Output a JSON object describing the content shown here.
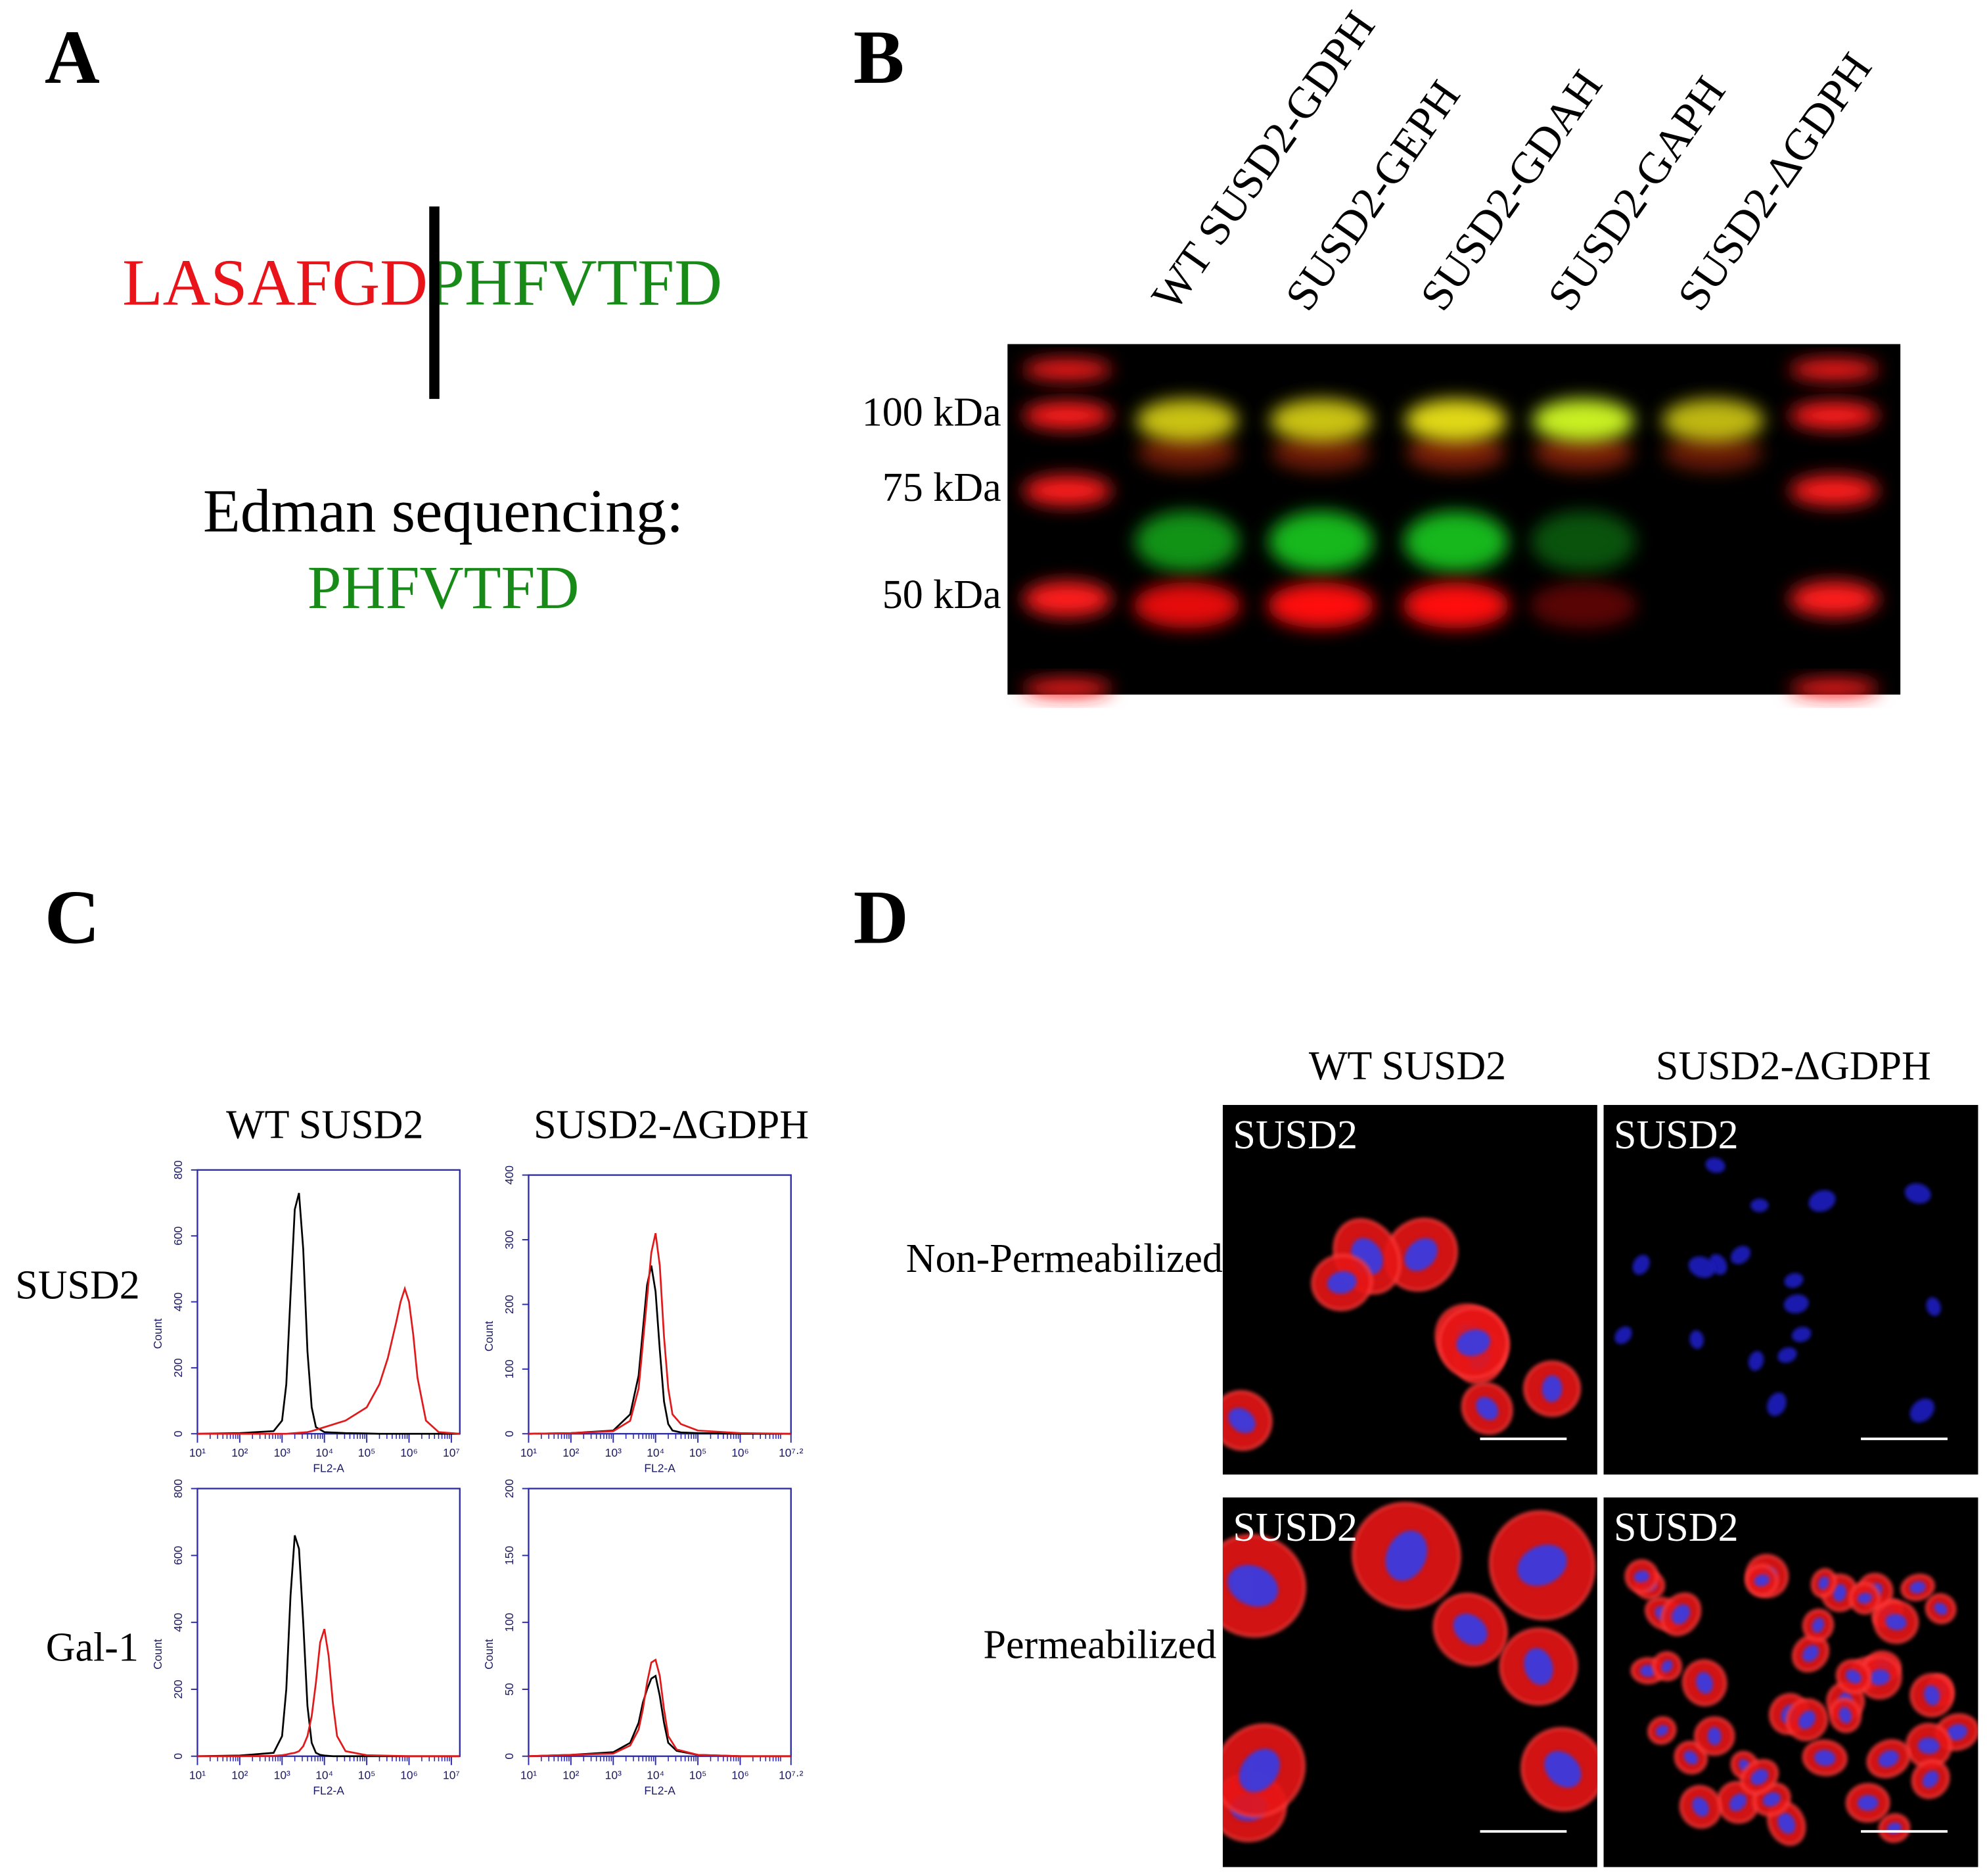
{
  "panel_a": {
    "label": "A",
    "sequence_left": "LASAFGD",
    "sequence_right": "PHFVTFD",
    "caption": "Edman sequencing:",
    "result": "PHFVTFD"
  },
  "panel_b": {
    "label": "B",
    "lanes": [
      "WT SUSD2-GDPH",
      "SUSD2-GEPH",
      "SUSD2-GDAH",
      "SUSD2-GAPH",
      "SUSD2-ΔGDPH"
    ],
    "markers": [
      "100 kDa",
      "75 kDa",
      "50 kDa"
    ]
  },
  "panel_c": {
    "label": "C",
    "columns": [
      "WT SUSD2",
      "SUSD2-ΔGDPH"
    ],
    "rows": [
      "SUSD2",
      "Gal-1"
    ],
    "charts": [
      {
        "type": "line",
        "xlabel": "FL2-A",
        "ylabel": "Count",
        "xlim": [
          1,
          7.2
        ],
        "ylim": [
          0,
          800
        ],
        "yticks": [
          0,
          200,
          400,
          600,
          800
        ],
        "xticks": [
          {
            "value": 1,
            "label": "10¹"
          },
          {
            "value": 2,
            "label": "10²"
          },
          {
            "value": 3,
            "label": "10³"
          },
          {
            "value": 4,
            "label": "10⁴"
          },
          {
            "value": 5,
            "label": "10⁵"
          },
          {
            "value": 6,
            "label": "10⁶"
          },
          {
            "value": 7,
            "label": "10⁷"
          }
        ],
        "x": [
          1,
          2,
          2.8,
          3.0,
          3.1,
          3.2,
          3.3,
          3.4,
          3.5,
          3.6,
          3.7,
          3.8,
          4.0,
          4.5,
          5.0,
          5.3,
          5.5,
          5.7,
          5.8,
          5.9,
          6.0,
          6.1,
          6.2,
          6.4,
          6.7,
          7.2
        ],
        "series": [
          {
            "color": "#000000",
            "values": [
              0,
              2,
              8,
              40,
              150,
              420,
              680,
              730,
              560,
              250,
              80,
              20,
              5,
              2,
              1,
              0,
              0,
              0,
              0,
              0,
              0,
              0,
              0,
              0,
              0,
              0
            ]
          },
          {
            "color": "#e0191b",
            "values": [
              0,
              0,
              0,
              0,
              0,
              1,
              2,
              3,
              4,
              5,
              8,
              12,
              20,
              40,
              80,
              150,
              230,
              340,
              400,
              440,
              400,
              300,
              170,
              40,
              5,
              0
            ]
          }
        ]
      },
      {
        "type": "line",
        "xlabel": "FL2-A",
        "ylabel": "Count",
        "xlim": [
          1,
          7.2
        ],
        "ylim": [
          0,
          400
        ],
        "yticks": [
          0,
          100,
          200,
          300,
          400
        ],
        "xticks": [
          {
            "value": 1,
            "label": "10¹"
          },
          {
            "value": 2,
            "label": "10²"
          },
          {
            "value": 3,
            "label": "10³"
          },
          {
            "value": 4,
            "label": "10⁴"
          },
          {
            "value": 5,
            "label": "10⁵"
          },
          {
            "value": 6,
            "label": "10⁶"
          },
          {
            "value": 7.2,
            "label": "10⁷·²"
          }
        ],
        "x": [
          1,
          2,
          3,
          3.4,
          3.6,
          3.7,
          3.8,
          3.9,
          4.0,
          4.1,
          4.2,
          4.3,
          4.4,
          4.6,
          5.0,
          6.0,
          7.2
        ],
        "series": [
          {
            "color": "#000000",
            "values": [
              0,
              1,
              5,
              30,
              90,
              160,
              230,
              260,
              220,
              130,
              50,
              15,
              5,
              2,
              1,
              0,
              0
            ]
          },
          {
            "color": "#e0191b",
            "values": [
              0,
              1,
              4,
              20,
              70,
              140,
              210,
              280,
              310,
              260,
              150,
              70,
              30,
              15,
              5,
              1,
              0
            ]
          }
        ]
      },
      {
        "type": "line",
        "xlabel": "FL2-A",
        "ylabel": "Count",
        "xlim": [
          1,
          7.2
        ],
        "ylim": [
          0,
          800
        ],
        "yticks": [
          0,
          200,
          400,
          600,
          800
        ],
        "xticks": [
          {
            "value": 1,
            "label": "10¹"
          },
          {
            "value": 2,
            "label": "10²"
          },
          {
            "value": 3,
            "label": "10³"
          },
          {
            "value": 4,
            "label": "10⁴"
          },
          {
            "value": 5,
            "label": "10⁵"
          },
          {
            "value": 6,
            "label": "10⁶"
          },
          {
            "value": 7,
            "label": "10⁷"
          }
        ],
        "x": [
          1,
          2,
          2.8,
          3.0,
          3.1,
          3.2,
          3.3,
          3.4,
          3.5,
          3.6,
          3.7,
          3.8,
          3.9,
          4.0,
          4.1,
          4.2,
          4.3,
          4.5,
          5.0,
          6.0,
          7.2
        ],
        "series": [
          {
            "color": "#000000",
            "values": [
              0,
              2,
              10,
              60,
              200,
              480,
              660,
              620,
              400,
              150,
              40,
              10,
              4,
              2,
              1,
              0,
              0,
              0,
              0,
              0,
              0
            ]
          },
          {
            "color": "#e0191b",
            "values": [
              0,
              0,
              1,
              3,
              5,
              8,
              10,
              15,
              30,
              60,
              120,
              220,
              340,
              380,
              300,
              160,
              60,
              15,
              3,
              0,
              0
            ]
          }
        ]
      },
      {
        "type": "line",
        "xlabel": "FL2-A",
        "ylabel": "Count",
        "xlim": [
          1,
          7.2
        ],
        "ylim": [
          0,
          200
        ],
        "yticks": [
          0,
          50,
          100,
          150,
          200
        ],
        "xticks": [
          {
            "value": 1,
            "label": "10¹"
          },
          {
            "value": 2,
            "label": "10²"
          },
          {
            "value": 3,
            "label": "10³"
          },
          {
            "value": 4,
            "label": "10⁴"
          },
          {
            "value": 5,
            "label": "10⁵"
          },
          {
            "value": 6,
            "label": "10⁶"
          },
          {
            "value": 7.2,
            "label": "10⁷·²"
          }
        ],
        "x": [
          1,
          2,
          3,
          3.4,
          3.6,
          3.7,
          3.8,
          3.9,
          4.0,
          4.1,
          4.2,
          4.3,
          4.5,
          5.0,
          6.0,
          7.2
        ],
        "series": [
          {
            "color": "#000000",
            "values": [
              0,
              1,
              3,
              10,
              25,
              40,
              50,
              58,
              60,
              45,
              25,
              10,
              4,
              1,
              0,
              0
            ]
          },
          {
            "color": "#e0191b",
            "values": [
              0,
              1,
              2,
              8,
              20,
              35,
              55,
              70,
              72,
              60,
              35,
              15,
              5,
              1,
              0,
              0
            ]
          }
        ]
      }
    ]
  },
  "panel_d": {
    "label": "D",
    "columns": [
      "WT SUSD2",
      "SUSD2-ΔGDPH"
    ],
    "rows": [
      "Non-Permeabilized",
      "Permeabilized"
    ],
    "images": [
      {
        "label": "SUSD2"
      },
      {
        "label": "SUSD2"
      },
      {
        "label": "SUSD2"
      },
      {
        "label": "SUSD2"
      }
    ]
  }
}
